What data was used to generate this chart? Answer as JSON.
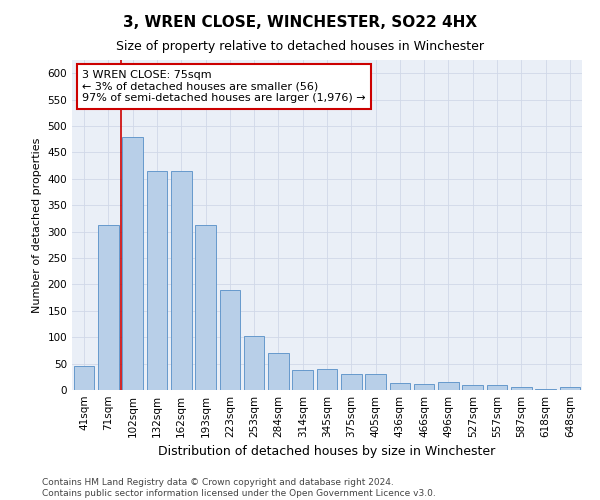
{
  "title": "3, WREN CLOSE, WINCHESTER, SO22 4HX",
  "subtitle": "Size of property relative to detached houses in Winchester",
  "xlabel": "Distribution of detached houses by size in Winchester",
  "ylabel": "Number of detached properties",
  "categories": [
    "41sqm",
    "71sqm",
    "102sqm",
    "132sqm",
    "162sqm",
    "193sqm",
    "223sqm",
    "253sqm",
    "284sqm",
    "314sqm",
    "345sqm",
    "375sqm",
    "405sqm",
    "436sqm",
    "466sqm",
    "496sqm",
    "527sqm",
    "557sqm",
    "587sqm",
    "618sqm",
    "648sqm"
  ],
  "values": [
    45,
    312,
    480,
    415,
    415,
    312,
    190,
    103,
    70,
    37,
    40,
    30,
    30,
    14,
    12,
    15,
    10,
    10,
    6,
    1,
    5
  ],
  "bar_color": "#b8cfe8",
  "bar_edge_color": "#6699cc",
  "vline_color": "#cc0000",
  "annotation_text": "3 WREN CLOSE: 75sqm\n← 3% of detached houses are smaller (56)\n97% of semi-detached houses are larger (1,976) →",
  "annotation_box_color": "#ffffff",
  "annotation_box_edge": "#cc0000",
  "ylim": [
    0,
    625
  ],
  "yticks": [
    0,
    50,
    100,
    150,
    200,
    250,
    300,
    350,
    400,
    450,
    500,
    550,
    600
  ],
  "footnote": "Contains HM Land Registry data © Crown copyright and database right 2024.\nContains public sector information licensed under the Open Government Licence v3.0.",
  "bg_color": "#ffffff",
  "plot_bg_color": "#eaeff7",
  "grid_color": "#d0d8e8",
  "title_fontsize": 11,
  "subtitle_fontsize": 9,
  "xlabel_fontsize": 9,
  "ylabel_fontsize": 8,
  "tick_fontsize": 7.5,
  "footnote_fontsize": 6.5
}
